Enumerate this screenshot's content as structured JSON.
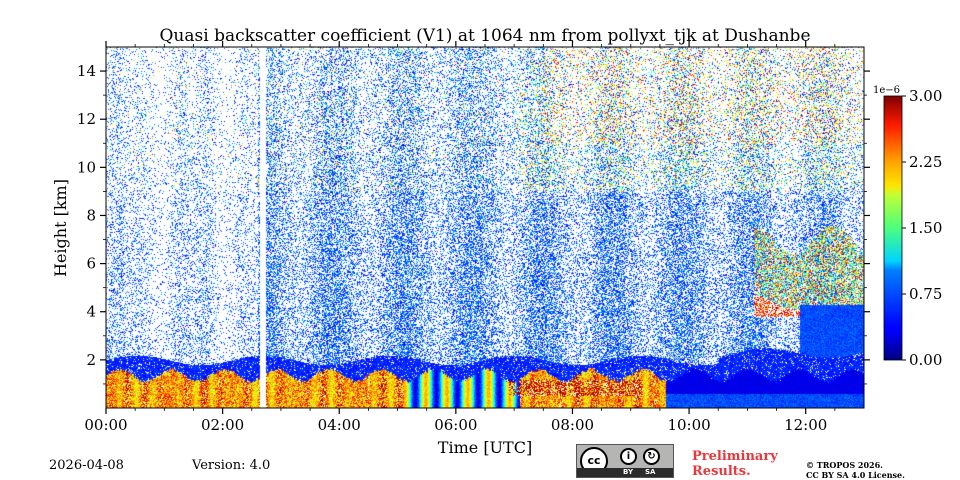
{
  "chart_data": {
    "type": "heatmap",
    "title": "Quasi backscatter coefficient (V1) at 1064 nm from pollyxt_tjk at Dushanbe",
    "xlabel": "Time [UTC]",
    "ylabel": "Height [km]",
    "xlim_hours": [
      0,
      13
    ],
    "ylim_km": [
      0,
      15
    ],
    "x_tick_values": [
      0,
      2,
      4,
      6,
      8,
      10,
      12
    ],
    "x_tick_labels": [
      "00:00",
      "02:00",
      "04:00",
      "06:00",
      "08:00",
      "10:00",
      "12:00"
    ],
    "y_tick_values": [
      2,
      4,
      6,
      8,
      10,
      12,
      14
    ],
    "y_tick_labels": [
      "2",
      "4",
      "6",
      "8",
      "10",
      "12",
      "14"
    ],
    "colorbar": {
      "colormap": "jet",
      "range": [
        0.0,
        3.0
      ],
      "tick_values": [
        0.0,
        0.75,
        1.5,
        2.25,
        3.0
      ],
      "tick_labels": [
        "0.00",
        "0.75",
        "1.50",
        "2.25",
        "3.00"
      ],
      "exponent_label": "1e−6"
    },
    "features": {
      "data_gap_hours": [
        2.63,
        2.73
      ],
      "boundary_layer_top_km": 1.3,
      "blue_layer_top_km": 2.0,
      "cloud_layer_hours": [
        11.1,
        13.0
      ],
      "cloud_layer_km": [
        3.8,
        8.0
      ]
    }
  },
  "footer": {
    "date": "2026-04-08",
    "version": "Version: 4.0",
    "preliminary_line1": "Preliminary",
    "preliminary_line2": "Results.",
    "copyright_line1": "© TROPOS 2026.",
    "copyright_line2": "CC BY SA 4.0 License."
  },
  "license_badge": {
    "cc": "cc",
    "by": "BY",
    "sa": "SA"
  }
}
